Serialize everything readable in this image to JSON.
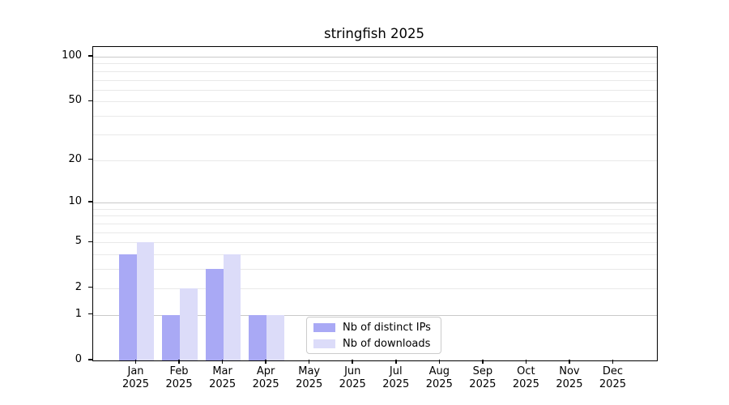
{
  "chart_data": {
    "type": "bar",
    "title": "stringfish 2025",
    "categories": [
      "Jan 2025",
      "Feb 2025",
      "Mar 2025",
      "Apr 2025",
      "May 2025",
      "Jun 2025",
      "Jul 2025",
      "Aug 2025",
      "Sep 2025",
      "Oct 2025",
      "Nov 2025",
      "Dec 2025"
    ],
    "series": [
      {
        "name": "Nb of distinct IPs",
        "color": "#a9a9f5",
        "values": [
          4,
          1,
          3,
          1,
          0,
          0,
          0,
          0,
          0,
          0,
          0,
          0
        ]
      },
      {
        "name": "Nb of downloads",
        "color": "#dcdcf9",
        "values": [
          5,
          2,
          4,
          1,
          0,
          0,
          0,
          0,
          0,
          0,
          0,
          0
        ]
      }
    ],
    "xlabel": "",
    "ylabel": "",
    "yscale": "log1p",
    "ylim": [
      0,
      116
    ],
    "y_ticks": [
      0,
      1,
      2,
      5,
      10,
      20,
      50,
      100
    ],
    "y_major_gridlines": [
      1,
      10,
      100
    ],
    "y_minor_gridlines": [
      2,
      3,
      4,
      5,
      6,
      7,
      8,
      9,
      20,
      30,
      40,
      50,
      60,
      70,
      80,
      90
    ],
    "grid": true,
    "legend_position": "lower center"
  }
}
